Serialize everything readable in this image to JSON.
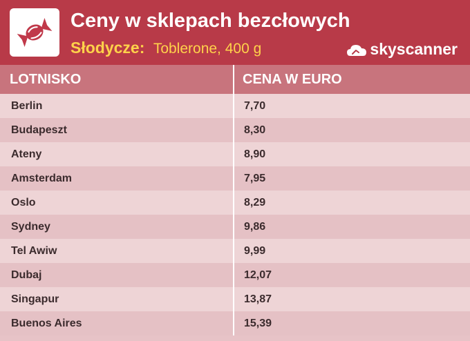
{
  "header": {
    "title": "Ceny w sklepach bezcłowych",
    "subtitle_label": "Słodycze:",
    "subtitle_value": "Toblerone, 400 g",
    "brand": "skyscanner",
    "icon": "candy-icon",
    "accent_color": "#b83a48",
    "highlight_color": "#ffd24a"
  },
  "table": {
    "columns": [
      "LOTNISKO",
      "CENA W EURO"
    ],
    "rows": [
      {
        "airport": "Berlin",
        "price": "7,70"
      },
      {
        "airport": "Budapeszt",
        "price": "8,30"
      },
      {
        "airport": "Ateny",
        "price": "8,90"
      },
      {
        "airport": "Amsterdam",
        "price": "7,95"
      },
      {
        "airport": "Oslo",
        "price": "8,29"
      },
      {
        "airport": "Sydney",
        "price": "9,86"
      },
      {
        "airport": "Tel Awiw",
        "price": "9,99"
      },
      {
        "airport": "Dubaj",
        "price": "12,07"
      },
      {
        "airport": "Singapur",
        "price": "13,87"
      },
      {
        "airport": "Buenos Aires",
        "price": "15,39"
      }
    ]
  }
}
